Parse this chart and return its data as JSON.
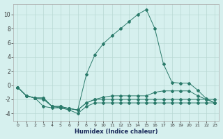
{
  "xlabel": "Humidex (Indice chaleur)",
  "background_color": "#d6f0ee",
  "grid_color": "#b8d8d4",
  "line_color": "#2a7a6a",
  "xlim": [
    -0.5,
    23.5
  ],
  "ylim": [
    -5,
    11.5
  ],
  "xticks": [
    0,
    1,
    2,
    3,
    4,
    5,
    6,
    7,
    8,
    9,
    10,
    11,
    12,
    13,
    14,
    15,
    16,
    17,
    18,
    19,
    20,
    21,
    22,
    23
  ],
  "yticks": [
    -4,
    -2,
    0,
    2,
    4,
    6,
    8,
    10
  ],
  "curve1_x": [
    0,
    1,
    2,
    3,
    4,
    5,
    6,
    7,
    8,
    9,
    10,
    11,
    12,
    13,
    14,
    15,
    16,
    17,
    18,
    19,
    20,
    21,
    22,
    23
  ],
  "curve1_y": [
    -0.3,
    -1.5,
    -1.8,
    -3.0,
    -3.2,
    -3.2,
    -3.5,
    -4.0,
    -3.0,
    -2.5,
    -2.5,
    -2.5,
    -2.5,
    -2.5,
    -2.5,
    -2.5,
    -2.5,
    -2.5,
    -2.5,
    -2.5,
    -2.5,
    -2.5,
    -2.5,
    -2.5
  ],
  "curve2_x": [
    0,
    1,
    2,
    3,
    4,
    5,
    6,
    7,
    8,
    9,
    10,
    11,
    12,
    13,
    14,
    15,
    16,
    17,
    18,
    19,
    20,
    21,
    22,
    23
  ],
  "curve2_y": [
    -0.3,
    -1.5,
    -1.8,
    -2.0,
    -3.0,
    -3.2,
    -3.3,
    -3.5,
    -2.5,
    -2.0,
    -2.0,
    -2.0,
    -2.0,
    -2.0,
    -2.0,
    -2.0,
    -2.0,
    -2.0,
    -2.0,
    -2.0,
    -2.0,
    -2.0,
    -2.0,
    -2.0
  ],
  "curve3_x": [
    0,
    1,
    2,
    3,
    4,
    5,
    6,
    7,
    8,
    9,
    10,
    11,
    12,
    13,
    14,
    15,
    16,
    17,
    18,
    19,
    20,
    21,
    22,
    23
  ],
  "curve3_y": [
    -0.3,
    -1.5,
    -1.8,
    -1.8,
    -3.0,
    -3.0,
    -3.3,
    -3.5,
    -2.5,
    -2.0,
    -1.7,
    -1.5,
    -1.5,
    -1.5,
    -1.5,
    -1.5,
    -1.0,
    -0.8,
    -0.8,
    -0.8,
    -0.8,
    -1.5,
    -2.0,
    -2.5
  ],
  "curve4_x": [
    0,
    1,
    2,
    3,
    4,
    5,
    6,
    7,
    8,
    9,
    10,
    11,
    12,
    13,
    14,
    15,
    16,
    17,
    18,
    19,
    20,
    21,
    22,
    23
  ],
  "curve4_y": [
    -0.3,
    -1.5,
    -1.8,
    -1.8,
    -3.0,
    -3.0,
    -3.3,
    -3.5,
    1.5,
    4.3,
    5.9,
    7.0,
    8.0,
    9.0,
    10.0,
    10.7,
    8.0,
    3.0,
    0.4,
    0.3,
    0.3,
    -0.7,
    -1.9,
    -2.5
  ]
}
